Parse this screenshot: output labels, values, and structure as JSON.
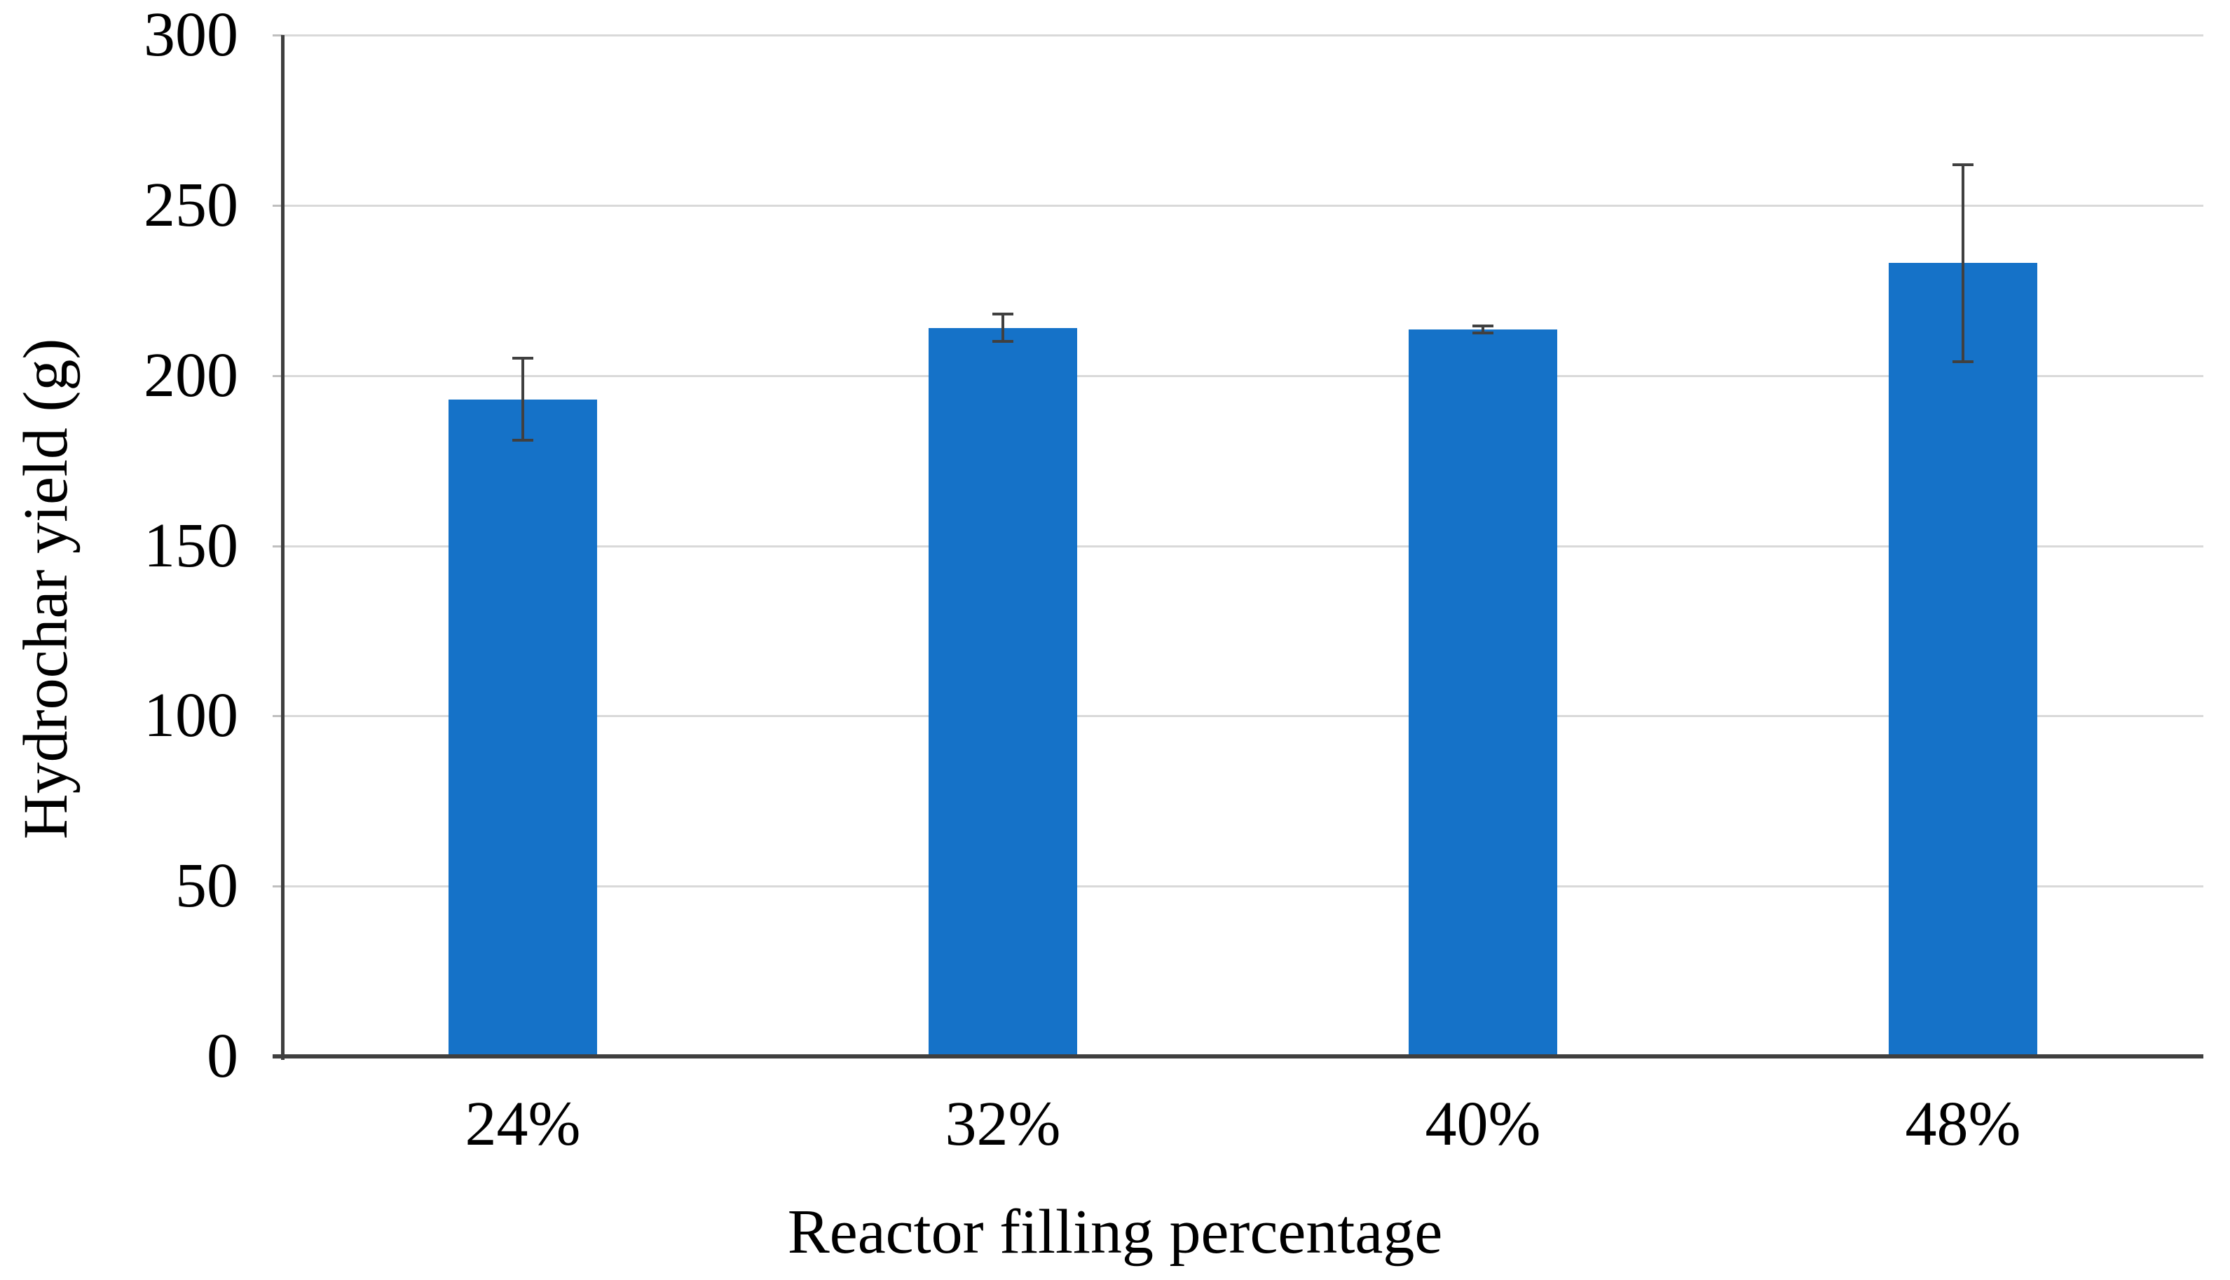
{
  "chart_data": {
    "type": "bar",
    "title": "",
    "categories": [
      "24%",
      "32%",
      "40%",
      "48%"
    ],
    "values": [
      193,
      214,
      213.5,
      233
    ],
    "errors": [
      12,
      4,
      1,
      29
    ],
    "series": [
      {
        "name": "Hydrochar yield",
        "values": [
          193,
          214,
          213.5,
          233
        ],
        "errors": [
          12,
          4,
          1,
          29
        ]
      }
    ],
    "xlabel": "Reactor filling percentage",
    "ylabel": "Hydrochar yield (g)",
    "ylim": [
      0,
      300
    ],
    "yticks": [
      0,
      50,
      100,
      150,
      200,
      250,
      300
    ],
    "grid": "horizontal-light",
    "legend_position": "none",
    "colors": {
      "bar": "#1572C8",
      "error_bar": "#404040",
      "axis": "#3F3F3F",
      "gridline": "#D9D9D9",
      "tick": "#BFBFBF",
      "text": "#000000",
      "background": "#FFFFFF"
    }
  }
}
